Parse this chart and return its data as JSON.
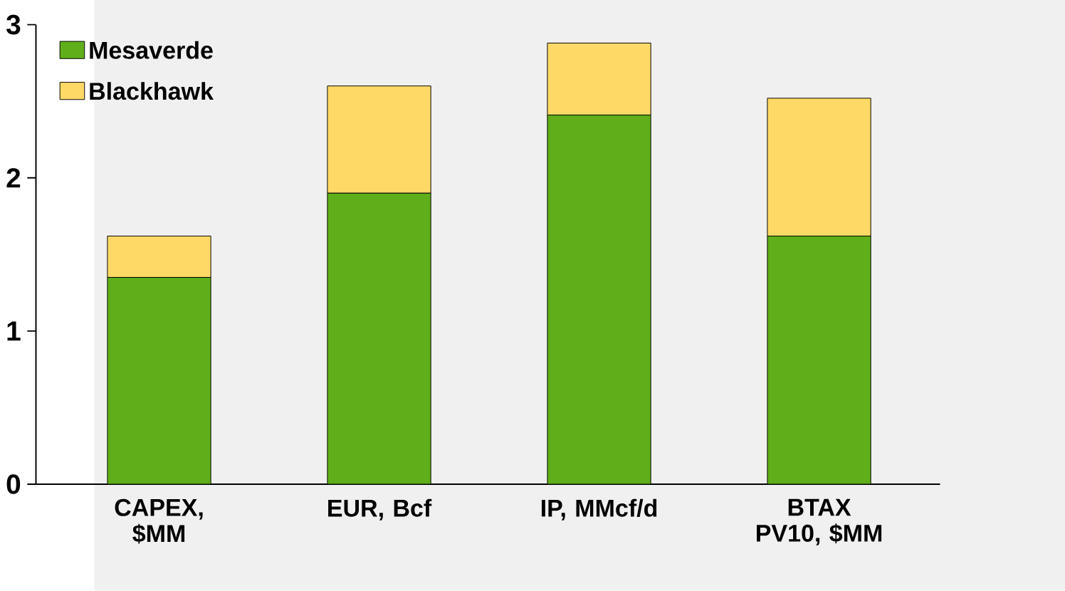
{
  "chart_data": {
    "type": "bar",
    "stacked": true,
    "categories": [
      "CAPEX, $MM",
      "EUR, Bcf",
      "IP, MMcf/d",
      "BTAX PV10, $MM"
    ],
    "series": [
      {
        "name": "Mesaverde",
        "color": "#5fae1a",
        "values": [
          1.35,
          1.9,
          2.41,
          1.62
        ]
      },
      {
        "name": "Blackhawk",
        "color": "#ffd966",
        "values": [
          0.27,
          0.7,
          0.47,
          0.9
        ]
      }
    ],
    "ylim": [
      0,
      3
    ],
    "yticks": [
      0,
      1,
      2,
      3
    ],
    "grid": false,
    "legend": "top left"
  }
}
